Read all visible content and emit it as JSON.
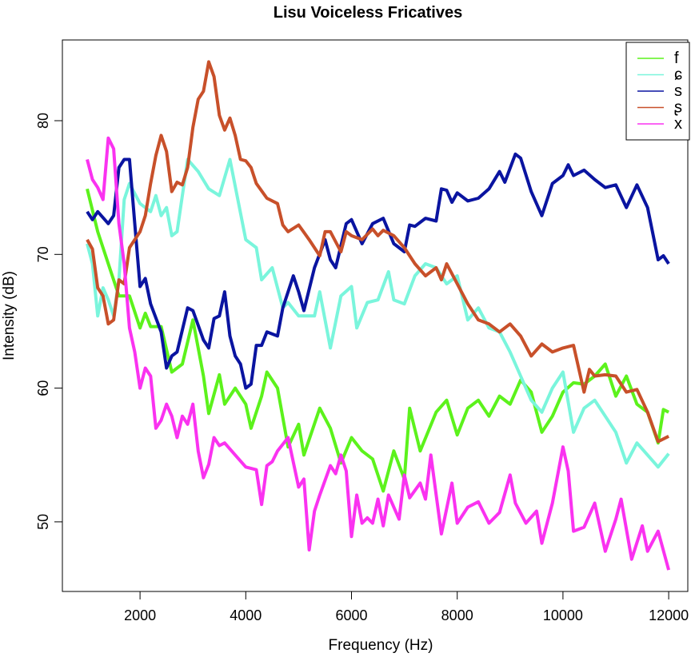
{
  "chart_data": {
    "type": "line",
    "title": "Lisu Voiceless Fricatives",
    "xlabel": "Frequency (Hz)",
    "ylabel": "Intensity (dB)",
    "xlim": [
      1000,
      12000
    ],
    "ylim": [
      46,
      84.5
    ],
    "xticks": [
      2000,
      4000,
      6000,
      8000,
      10000,
      12000
    ],
    "yticks": [
      50,
      60,
      70,
      80
    ],
    "grid": false,
    "legend_position": "top-right",
    "series": [
      {
        "name": "f",
        "color": "#5cf21c",
        "x": [
          1000,
          1200,
          1400,
          1600,
          1800,
          2000,
          2100,
          2200,
          2400,
          2600,
          2800,
          3000,
          3200,
          3300,
          3500,
          3600,
          3800,
          4000,
          4100,
          4300,
          4400,
          4600,
          4800,
          5000,
          5100,
          5400,
          5600,
          5800,
          6000,
          6200,
          6400,
          6600,
          6800,
          7000,
          7100,
          7300,
          7600,
          7800,
          8000,
          8200,
          8400,
          8600,
          8800,
          9000,
          9200,
          9400,
          9600,
          9800,
          10000,
          10200,
          10400,
          10600,
          10800,
          11000,
          11200,
          11400,
          11600,
          11800,
          11900,
          12000
        ],
        "y": [
          74.9,
          71.7,
          69.3,
          66.9,
          66.9,
          64.5,
          65.6,
          64.6,
          64.6,
          61.2,
          61.8,
          65.1,
          60.9,
          58.1,
          61.0,
          58.8,
          60.0,
          58.8,
          57.0,
          59.4,
          61.2,
          60.0,
          55.6,
          57.3,
          55.0,
          58.5,
          57.0,
          54.4,
          56.3,
          55.3,
          54.7,
          52.3,
          55.3,
          53.2,
          58.5,
          55.3,
          58.2,
          59.1,
          56.5,
          58.5,
          59.1,
          57.9,
          59.4,
          58.8,
          60.6,
          59.7,
          56.7,
          57.9,
          59.7,
          60.4,
          60.3,
          60.9,
          61.8,
          59.4,
          60.9,
          58.8,
          58.2,
          55.9,
          58.4,
          58.2
        ]
      },
      {
        "name": "ɕ",
        "color": "#7af5dc",
        "x": [
          1000,
          1100,
          1200,
          1300,
          1400,
          1500,
          1600,
          1700,
          1800,
          2000,
          2200,
          2300,
          2400,
          2500,
          2600,
          2700,
          2900,
          3100,
          3300,
          3500,
          3700,
          4000,
          4200,
          4300,
          4500,
          4700,
          4800,
          5000,
          5300,
          5400,
          5600,
          5800,
          6000,
          6100,
          6300,
          6500,
          6700,
          6800,
          7000,
          7200,
          7400,
          7600,
          7800,
          8000,
          8200,
          8400,
          8600,
          8800,
          9000,
          9200,
          9400,
          9600,
          9800,
          10000,
          10200,
          10400,
          10600,
          10800,
          11000,
          11200,
          11400,
          11600,
          11800,
          12000
        ],
        "y": [
          70.8,
          69.3,
          65.4,
          67.5,
          66.6,
          65.4,
          68.1,
          74.1,
          75.3,
          73.8,
          73.2,
          74.4,
          72.9,
          73.5,
          71.4,
          71.7,
          77.1,
          76.2,
          74.9,
          74.4,
          77.1,
          71.1,
          70.5,
          68.1,
          69.0,
          66.0,
          66.4,
          65.4,
          65.4,
          67.2,
          63.0,
          66.9,
          67.6,
          64.5,
          66.4,
          66.6,
          68.7,
          66.6,
          66.3,
          68.4,
          69.3,
          69.0,
          67.8,
          68.4,
          65.1,
          66.0,
          64.5,
          64.2,
          62.7,
          60.9,
          59.1,
          58.2,
          60.0,
          61.2,
          56.7,
          58.5,
          59.1,
          57.9,
          56.7,
          54.4,
          55.9,
          55.0,
          54.1,
          55.1
        ]
      },
      {
        "name": "s",
        "color": "#0a14a0",
        "x": [
          1000,
          1100,
          1200,
          1400,
          1500,
          1600,
          1700,
          1800,
          1900,
          2000,
          2100,
          2200,
          2400,
          2500,
          2600,
          2700,
          2900,
          3000,
          3200,
          3300,
          3400,
          3500,
          3600,
          3700,
          3800,
          3900,
          4000,
          4100,
          4200,
          4300,
          4400,
          4600,
          4700,
          4900,
          5000,
          5100,
          5300,
          5500,
          5600,
          5700,
          5900,
          6000,
          6200,
          6400,
          6600,
          6800,
          7000,
          7100,
          7200,
          7400,
          7600,
          7700,
          7800,
          7900,
          8000,
          8200,
          8400,
          8600,
          8800,
          8900,
          9100,
          9200,
          9400,
          9600,
          9800,
          10000,
          10100,
          10200,
          10400,
          10600,
          10800,
          11000,
          11200,
          11400,
          11600,
          11800,
          11900,
          12000
        ],
        "y": [
          73.2,
          72.6,
          73.2,
          72.3,
          72.9,
          76.5,
          77.1,
          77.1,
          72.3,
          67.6,
          68.2,
          66.3,
          64.2,
          61.5,
          62.4,
          62.7,
          66.0,
          65.8,
          63.6,
          63.0,
          65.2,
          65.4,
          67.2,
          63.9,
          62.4,
          61.8,
          60.0,
          60.3,
          63.2,
          63.2,
          64.2,
          63.9,
          66.0,
          68.4,
          67.2,
          65.8,
          69.0,
          71.1,
          69.6,
          69.0,
          72.3,
          72.6,
          70.8,
          72.3,
          72.7,
          70.8,
          70.2,
          72.2,
          72.1,
          72.7,
          72.5,
          74.9,
          74.8,
          73.9,
          74.6,
          74.0,
          74.2,
          74.9,
          76.2,
          75.4,
          77.5,
          77.2,
          74.7,
          72.9,
          75.3,
          75.9,
          76.7,
          75.9,
          76.3,
          75.6,
          75.0,
          75.2,
          73.5,
          75.2,
          73.5,
          69.6,
          69.9,
          69.3
        ]
      },
      {
        "name": "ʂ",
        "color": "#c8502a",
        "x": [
          1000,
          1100,
          1200,
          1300,
          1400,
          1500,
          1600,
          1700,
          1800,
          2000,
          2100,
          2200,
          2300,
          2400,
          2500,
          2600,
          2700,
          2800,
          2900,
          3000,
          3100,
          3200,
          3300,
          3400,
          3500,
          3600,
          3700,
          3800,
          3900,
          4000,
          4100,
          4200,
          4400,
          4600,
          4700,
          4800,
          5000,
          5200,
          5400,
          5500,
          5600,
          5800,
          5900,
          6000,
          6200,
          6400,
          6500,
          6600,
          6800,
          7000,
          7200,
          7400,
          7600,
          7700,
          7800,
          8000,
          8200,
          8400,
          8600,
          8800,
          9000,
          9200,
          9400,
          9600,
          9800,
          10000,
          10200,
          10400,
          10500,
          10600,
          10800,
          11000,
          11200,
          11400,
          11600,
          11800,
          12000
        ],
        "y": [
          71.1,
          70.4,
          67.5,
          66.9,
          64.8,
          65.1,
          68.1,
          67.8,
          70.5,
          71.7,
          72.9,
          75.3,
          77.4,
          78.9,
          77.7,
          74.7,
          75.4,
          75.2,
          76.5,
          79.5,
          81.6,
          82.2,
          84.4,
          83.3,
          80.4,
          79.3,
          80.2,
          78.9,
          77.1,
          77.0,
          76.5,
          75.3,
          74.2,
          73.8,
          72.2,
          71.7,
          72.2,
          71.1,
          69.9,
          71.7,
          71.7,
          70.2,
          71.7,
          71.4,
          71.1,
          71.9,
          71.4,
          71.8,
          71.4,
          70.5,
          69.3,
          68.4,
          69.0,
          68.1,
          69.3,
          67.8,
          66.3,
          65.1,
          64.8,
          64.2,
          64.8,
          63.9,
          62.4,
          63.3,
          62.7,
          63.0,
          63.2,
          59.7,
          61.4,
          60.9,
          61.0,
          60.9,
          59.7,
          59.9,
          58.2,
          56.0,
          56.4
        ]
      },
      {
        "name": "x",
        "color": "#fa32f0",
        "x": [
          1000,
          1100,
          1200,
          1300,
          1400,
          1500,
          1600,
          1700,
          1800,
          1900,
          2000,
          2100,
          2200,
          2300,
          2400,
          2500,
          2600,
          2700,
          2800,
          2900,
          3000,
          3100,
          3200,
          3300,
          3400,
          3500,
          3600,
          3800,
          4000,
          4200,
          4300,
          4400,
          4500,
          4600,
          4800,
          5000,
          5100,
          5200,
          5300,
          5400,
          5600,
          5700,
          5800,
          5900,
          6000,
          6100,
          6200,
          6300,
          6400,
          6500,
          6600,
          6700,
          6900,
          7000,
          7100,
          7300,
          7400,
          7500,
          7700,
          7900,
          8000,
          8200,
          8400,
          8600,
          8800,
          9000,
          9100,
          9300,
          9500,
          9600,
          9800,
          10000,
          10100,
          10200,
          10400,
          10600,
          10800,
          11000,
          11100,
          11300,
          11500,
          11600,
          11800,
          12000
        ],
        "y": [
          77.1,
          75.6,
          75.0,
          74.1,
          78.7,
          77.9,
          72.3,
          69.3,
          64.5,
          62.7,
          60.0,
          61.5,
          60.9,
          57.0,
          57.6,
          58.8,
          57.9,
          56.3,
          57.9,
          57.3,
          58.8,
          55.3,
          53.3,
          54.3,
          56.3,
          55.7,
          55.9,
          55.0,
          54.1,
          53.9,
          51.3,
          54.2,
          54.5,
          55.3,
          56.3,
          52.6,
          53.2,
          47.9,
          50.8,
          52.0,
          54.2,
          53.6,
          55.0,
          53.8,
          48.9,
          52.0,
          49.9,
          50.3,
          49.9,
          51.7,
          49.7,
          52.0,
          50.2,
          53.5,
          51.8,
          52.9,
          51.7,
          55.0,
          49.1,
          52.9,
          49.9,
          51.1,
          51.5,
          49.9,
          50.7,
          53.5,
          51.4,
          49.9,
          50.8,
          48.4,
          51.4,
          55.6,
          53.8,
          49.3,
          49.6,
          51.4,
          47.8,
          50.2,
          51.7,
          47.2,
          49.7,
          47.8,
          49.3,
          46.4
        ]
      }
    ]
  }
}
